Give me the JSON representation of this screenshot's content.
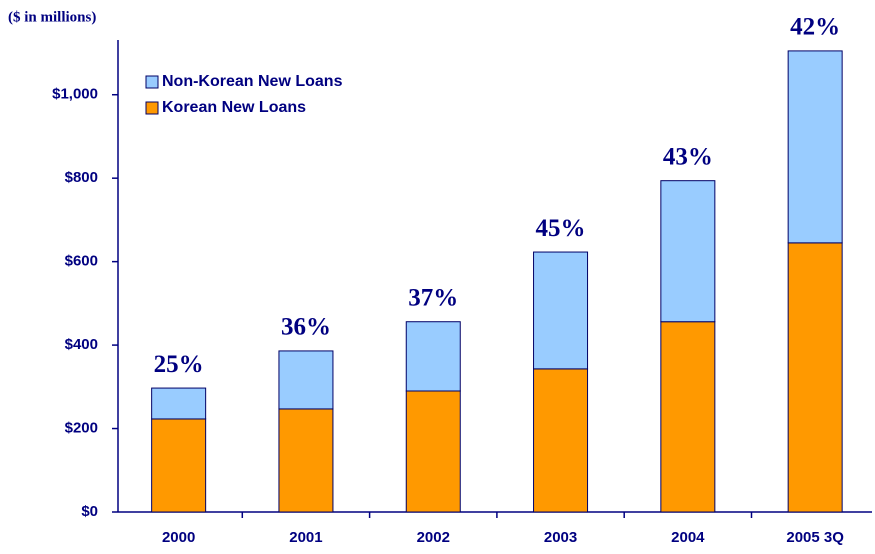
{
  "chart_data": {
    "type": "stacked_bar",
    "title": "($ in millions)",
    "categories": [
      "2000",
      "2001",
      "2002",
      "2003",
      "2004",
      "2005 3Q"
    ],
    "series": [
      {
        "name": "Korean New Loans",
        "color": "#ff9900",
        "values": [
          223,
          247,
          290,
          343,
          456,
          645
        ]
      },
      {
        "name": "Non-Korean New Loans",
        "color": "#99ccff",
        "values": [
          74,
          139,
          166,
          280,
          338,
          460
        ]
      }
    ],
    "annotations": [
      "25%",
      "36%",
      "37%",
      "45%",
      "43%",
      "42%"
    ],
    "ylim": [
      0,
      1100
    ],
    "yticks": [
      {
        "value": 0,
        "label": "$0"
      },
      {
        "value": 200,
        "label": "$200"
      },
      {
        "value": 400,
        "label": "$400"
      },
      {
        "value": 600,
        "label": "$600"
      },
      {
        "value": 800,
        "label": "$800"
      },
      {
        "value": 1000,
        "label": "$1,000"
      }
    ]
  }
}
